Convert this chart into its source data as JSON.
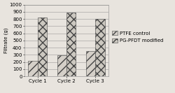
{
  "categories": [
    "Cycle 1",
    "Cycle 2",
    "Cycle 3"
  ],
  "ptfe_values": [
    220,
    290,
    355
  ],
  "pg_pfdt_values": [
    820,
    890,
    800
  ],
  "ylabel": "Filtrate (g)",
  "ylim": [
    0,
    1000
  ],
  "yticks": [
    0,
    100,
    200,
    300,
    400,
    500,
    600,
    700,
    800,
    900,
    1000
  ],
  "legend_labels": [
    "PTFE control",
    "PG-PFDT modified"
  ],
  "bar_width": 0.32,
  "background_color": "#e8e4de",
  "ptfe_hatch": "///",
  "pg_hatch": "xxx",
  "bar_edge_color": "#444444",
  "bar_face_color": "#d8d0c4",
  "axis_fontsize": 5,
  "legend_fontsize": 5,
  "tick_fontsize": 5
}
